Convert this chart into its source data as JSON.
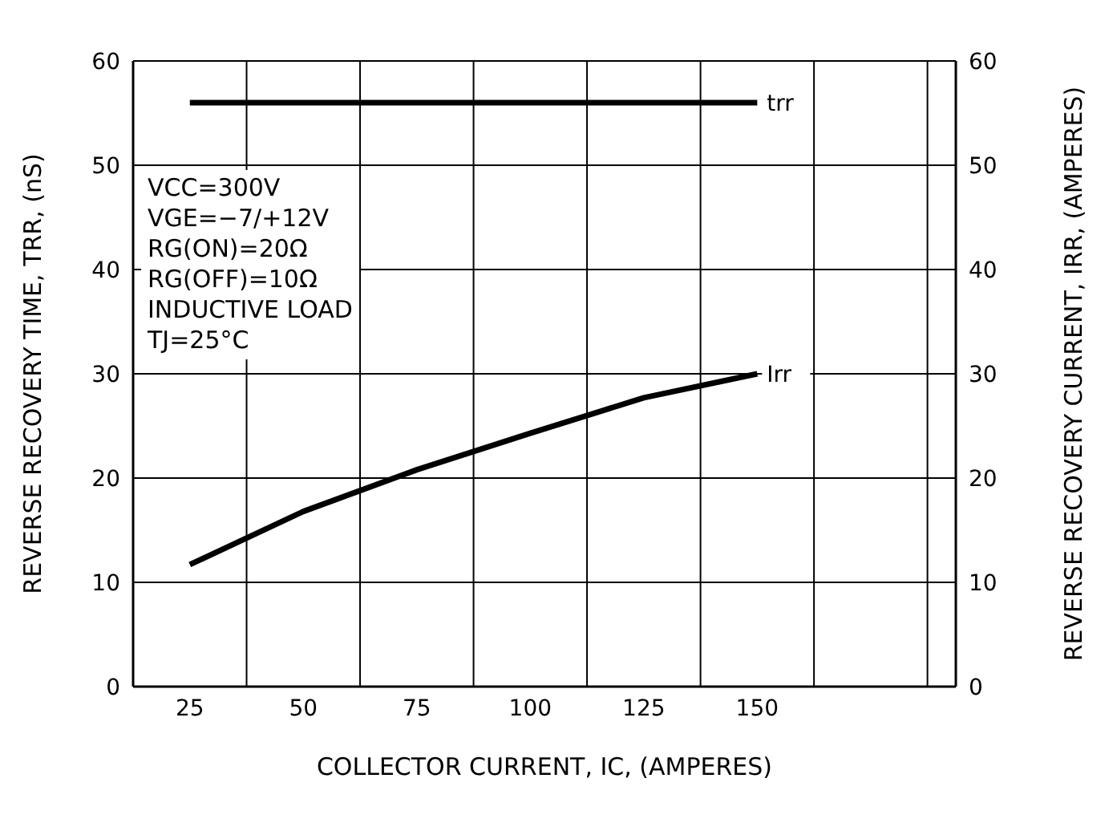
{
  "chart_data": {
    "type": "line",
    "xlabel": "COLLECTOR CURRENT, IC, (AMPERES)",
    "ylabel": "REVERSE RECOVERY TIME, TRR, (nS)",
    "y2label": "REVERSE RECOVERY CURRENT, IRR, (AMPERES)",
    "x": [
      25,
      50,
      75,
      100,
      125,
      150
    ],
    "series": [
      {
        "name": "trr",
        "color": "#000000",
        "x": [
          25,
          150
        ],
        "values": [
          56,
          56
        ]
      },
      {
        "name": "Irr",
        "color": "#000000",
        "axis": "y2",
        "values": [
          11.7,
          16.8,
          20.8,
          24.3,
          27.7,
          30
        ]
      }
    ],
    "xlim": [
      12.5,
      193.75
    ],
    "xticks": [
      {
        "value": 25,
        "label": "25"
      },
      {
        "value": 37.5,
        "label": null
      },
      {
        "value": 50,
        "label": "50"
      },
      {
        "value": 62.5,
        "label": null
      },
      {
        "value": 75,
        "label": "75"
      },
      {
        "value": 87.5,
        "label": null
      },
      {
        "value": 100,
        "label": "100"
      },
      {
        "value": 112.5,
        "label": null
      },
      {
        "value": 125,
        "label": "125"
      },
      {
        "value": 137.5,
        "label": null
      },
      {
        "value": 150,
        "label": "150"
      },
      {
        "value": 162.5,
        "label": null
      },
      {
        "value": 187.5,
        "label": null
      }
    ],
    "ylim": [
      0,
      60
    ],
    "yticks": [
      0,
      10,
      20,
      30,
      40,
      50,
      60
    ],
    "y2lim": [
      0,
      60
    ],
    "y2ticks": [
      0,
      10,
      20,
      30,
      40,
      50,
      60
    ],
    "annotations": [
      "VCC=300V\nVGE=−7/+12V\nRG(ON)=20Ω\nRG(OFF)=10Ω\nINDUCTIVE LOAD\nTJ=25°C"
    ],
    "grid": true,
    "marker": "none",
    "line_style": "solid"
  }
}
